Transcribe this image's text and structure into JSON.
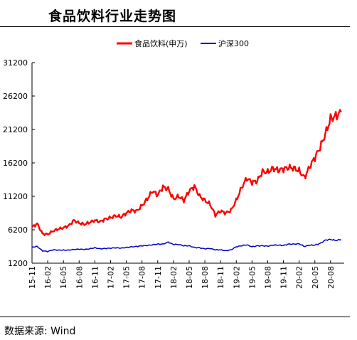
{
  "title": "食品饮料行业走势图",
  "source": "数据来源:  Wind",
  "chart_data": {
    "type": "line",
    "title": "食品饮料行业走势图",
    "xlabel": "",
    "ylabel": "",
    "ylim": [
      1200,
      31200
    ],
    "yticks": [
      1200,
      6200,
      11200,
      16200,
      21200,
      26200,
      31200
    ],
    "ytick_labels": [
      "1200",
      "6200",
      "11200",
      "16200",
      "21200",
      "26200",
      "31200"
    ],
    "xticks": [
      "15-11",
      "16-02",
      "16-05",
      "16-08",
      "16-11",
      "17-02",
      "17-05",
      "17-08",
      "17-11",
      "18-02",
      "18-05",
      "18-08",
      "18-11",
      "19-02",
      "19-05",
      "19-08",
      "19-11",
      "20-02",
      "20-05",
      "20-08"
    ],
    "x_end": "20-10",
    "legend_position": "top-center",
    "grid": false,
    "series": [
      {
        "name": "食品饮料(申万)",
        "color": "#ff0000",
        "points": [
          [
            "15-11",
            6600
          ],
          [
            "15-12",
            7100
          ],
          [
            "16-01",
            5600
          ],
          [
            "16-02",
            5500
          ],
          [
            "16-03",
            6000
          ],
          [
            "16-04",
            6300
          ],
          [
            "16-05",
            6500
          ],
          [
            "16-06",
            6800
          ],
          [
            "16-07",
            7600
          ],
          [
            "16-08",
            7200
          ],
          [
            "16-09",
            7000
          ],
          [
            "16-10",
            7300
          ],
          [
            "16-11",
            7600
          ],
          [
            "16-12",
            7400
          ],
          [
            "17-01",
            7800
          ],
          [
            "17-02",
            8000
          ],
          [
            "17-03",
            8300
          ],
          [
            "17-04",
            8100
          ],
          [
            "17-05",
            8700
          ],
          [
            "17-06",
            9100
          ],
          [
            "17-07",
            9000
          ],
          [
            "17-08",
            9800
          ],
          [
            "17-09",
            10800
          ],
          [
            "17-10",
            12000
          ],
          [
            "17-11",
            11400
          ],
          [
            "17-12",
            12600
          ],
          [
            "18-01",
            12300
          ],
          [
            "18-02",
            10800
          ],
          [
            "18-03",
            11200
          ],
          [
            "18-04",
            10600
          ],
          [
            "18-05",
            12000
          ],
          [
            "18-06",
            12700
          ],
          [
            "18-07",
            11200
          ],
          [
            "18-08",
            10600
          ],
          [
            "18-09",
            10000
          ],
          [
            "18-10",
            8400
          ],
          [
            "18-11",
            9000
          ],
          [
            "18-12",
            8700
          ],
          [
            "19-01",
            9100
          ],
          [
            "19-02",
            10600
          ],
          [
            "19-03",
            12500
          ],
          [
            "19-04",
            13900
          ],
          [
            "19-05",
            13300
          ],
          [
            "19-06",
            13500
          ],
          [
            "19-07",
            14900
          ],
          [
            "19-08",
            14800
          ],
          [
            "19-09",
            15400
          ],
          [
            "19-10",
            15100
          ],
          [
            "19-11",
            15300
          ],
          [
            "19-12",
            15500
          ],
          [
            "20-01",
            15400
          ],
          [
            "20-02",
            15000
          ],
          [
            "20-03",
            14000
          ],
          [
            "20-04",
            15600
          ],
          [
            "20-05",
            17000
          ],
          [
            "20-06",
            18500
          ],
          [
            "20-07",
            20500
          ],
          [
            "20-08",
            22800
          ],
          [
            "20-09",
            23200
          ],
          [
            "20-10",
            23800
          ]
        ]
      },
      {
        "name": "沪深300",
        "color": "#0000cc",
        "points": [
          [
            "15-11",
            3600
          ],
          [
            "15-12",
            3700
          ],
          [
            "16-01",
            3050
          ],
          [
            "16-02",
            2950
          ],
          [
            "16-03",
            3200
          ],
          [
            "16-04",
            3150
          ],
          [
            "16-05",
            3150
          ],
          [
            "16-06",
            3150
          ],
          [
            "16-07",
            3250
          ],
          [
            "16-08",
            3300
          ],
          [
            "16-09",
            3250
          ],
          [
            "16-10",
            3350
          ],
          [
            "16-11",
            3500
          ],
          [
            "16-12",
            3350
          ],
          [
            "17-01",
            3400
          ],
          [
            "17-02",
            3450
          ],
          [
            "17-03",
            3500
          ],
          [
            "17-04",
            3450
          ],
          [
            "17-05",
            3550
          ],
          [
            "17-06",
            3650
          ],
          [
            "17-07",
            3700
          ],
          [
            "17-08",
            3800
          ],
          [
            "17-09",
            3850
          ],
          [
            "17-10",
            3950
          ],
          [
            "17-11",
            4050
          ],
          [
            "17-12",
            4050
          ],
          [
            "18-01",
            4350
          ],
          [
            "18-02",
            4000
          ],
          [
            "18-03",
            4000
          ],
          [
            "18-04",
            3800
          ],
          [
            "18-05",
            3800
          ],
          [
            "18-06",
            3550
          ],
          [
            "18-07",
            3500
          ],
          [
            "18-08",
            3350
          ],
          [
            "18-09",
            3400
          ],
          [
            "18-10",
            3200
          ],
          [
            "18-11",
            3200
          ],
          [
            "18-12",
            3050
          ],
          [
            "19-01",
            3200
          ],
          [
            "19-02",
            3650
          ],
          [
            "19-03",
            3800
          ],
          [
            "19-04",
            3950
          ],
          [
            "19-05",
            3650
          ],
          [
            "19-06",
            3800
          ],
          [
            "19-07",
            3800
          ],
          [
            "19-08",
            3750
          ],
          [
            "19-09",
            3900
          ],
          [
            "19-10",
            3900
          ],
          [
            "19-11",
            3850
          ],
          [
            "19-12",
            4050
          ],
          [
            "20-01",
            4050
          ],
          [
            "20-02",
            4100
          ],
          [
            "20-03",
            3700
          ],
          [
            "20-04",
            3900
          ],
          [
            "20-05",
            3900
          ],
          [
            "20-06",
            4150
          ],
          [
            "20-07",
            4650
          ],
          [
            "20-08",
            4750
          ],
          [
            "20-09",
            4600
          ],
          [
            "20-10",
            4750
          ]
        ]
      }
    ]
  }
}
